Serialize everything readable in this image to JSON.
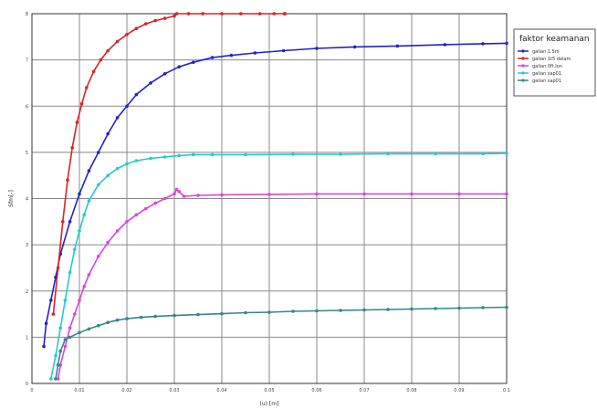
{
  "chart_data": {
    "type": "line",
    "title": "",
    "xlabel": "(u) [m]",
    "ylabel": "Sfm[-]",
    "xlim": [
      0,
      0.1
    ],
    "ylim": [
      0,
      8
    ],
    "grid": true,
    "legend_position": "top-right",
    "legend_title": "faktor keamanan",
    "x_ticks": [
      "0",
      "0.01",
      "0.02",
      "0.03",
      "0.04",
      "0.05",
      "0.06",
      "0.07",
      "0.08",
      "0.09",
      "0.1"
    ],
    "y_ticks": [
      "0",
      "1",
      "2",
      "3",
      "4",
      "5",
      "6",
      "7",
      "8"
    ],
    "series": [
      {
        "name": "galian 1.5m",
        "color": "#2222cc",
        "x": [
          0.0025,
          0.003,
          0.004,
          0.005,
          0.006,
          0.008,
          0.01,
          0.012,
          0.014,
          0.016,
          0.018,
          0.02,
          0.022,
          0.025,
          0.028,
          0.031,
          0.034,
          0.038,
          0.042,
          0.047,
          0.053,
          0.06,
          0.068,
          0.077,
          0.087,
          0.095,
          0.1
        ],
        "y": [
          0.8,
          1.3,
          1.8,
          2.3,
          2.8,
          3.5,
          4.1,
          4.6,
          5.0,
          5.4,
          5.75,
          6.0,
          6.25,
          6.5,
          6.7,
          6.85,
          6.95,
          7.05,
          7.1,
          7.15,
          7.2,
          7.25,
          7.28,
          7.3,
          7.33,
          7.35,
          7.36
        ]
      },
      {
        "name": "galian 1t5 dalam",
        "color": "#dd2222",
        "x": [
          0.0045,
          0.0055,
          0.0065,
          0.0075,
          0.0085,
          0.0095,
          0.0105,
          0.0115,
          0.013,
          0.0145,
          0.016,
          0.018,
          0.02,
          0.022,
          0.024,
          0.026,
          0.028,
          0.03,
          0.0305,
          0.033,
          0.036,
          0.04,
          0.044,
          0.048,
          0.051,
          0.0532,
          0.0533,
          0.0532
        ],
        "y": [
          1.5,
          2.5,
          3.5,
          4.4,
          5.1,
          5.65,
          6.05,
          6.4,
          6.75,
          7.0,
          7.2,
          7.4,
          7.55,
          7.68,
          7.78,
          7.85,
          7.9,
          7.95,
          8.05,
          8.15,
          8.22,
          8.3,
          8.38,
          8.45,
          8.5,
          8.5,
          8.2,
          8.3
        ]
      },
      {
        "name": "galian 0ft.lon",
        "color": "#dd44dd",
        "x": [
          0.0055,
          0.006,
          0.007,
          0.008,
          0.009,
          0.01,
          0.011,
          0.012,
          0.014,
          0.016,
          0.018,
          0.02,
          0.022,
          0.024,
          0.026,
          0.028,
          0.03,
          0.0305,
          0.031,
          0.032,
          0.035,
          0.04,
          0.05,
          0.06,
          0.07,
          0.08,
          0.09,
          0.1
        ],
        "y": [
          0.1,
          0.4,
          0.8,
          1.2,
          1.5,
          1.8,
          2.1,
          2.35,
          2.75,
          3.05,
          3.3,
          3.5,
          3.65,
          3.78,
          3.9,
          4.0,
          4.1,
          4.2,
          4.15,
          4.05,
          4.07,
          4.08,
          4.09,
          4.1,
          4.1,
          4.1,
          4.1,
          4.1
        ]
      },
      {
        "name": "galian sap01",
        "color": "#22cccc",
        "x": [
          0.004,
          0.005,
          0.006,
          0.007,
          0.008,
          0.009,
          0.01,
          0.011,
          0.012,
          0.014,
          0.016,
          0.018,
          0.02,
          0.022,
          0.025,
          0.028,
          0.031,
          0.034,
          0.038,
          0.045,
          0.055,
          0.065,
          0.075,
          0.085,
          0.095,
          0.1
        ],
        "y": [
          0.1,
          0.6,
          1.2,
          1.8,
          2.4,
          2.9,
          3.3,
          3.65,
          3.95,
          4.3,
          4.5,
          4.65,
          4.75,
          4.82,
          4.87,
          4.9,
          4.93,
          4.95,
          4.95,
          4.95,
          4.96,
          4.96,
          4.97,
          4.97,
          4.97,
          4.98
        ]
      },
      {
        "name": "galian sap01",
        "color": "#338888",
        "x": [
          0.005,
          0.0055,
          0.006,
          0.007,
          0.008,
          0.01,
          0.012,
          0.014,
          0.016,
          0.018,
          0.02,
          0.023,
          0.026,
          0.03,
          0.035,
          0.04,
          0.045,
          0.05,
          0.055,
          0.06,
          0.065,
          0.07,
          0.075,
          0.08,
          0.085,
          0.09,
          0.095,
          0.1
        ],
        "y": [
          0.1,
          0.4,
          0.7,
          0.95,
          1.0,
          1.1,
          1.18,
          1.25,
          1.32,
          1.37,
          1.4,
          1.43,
          1.45,
          1.47,
          1.49,
          1.51,
          1.53,
          1.54,
          1.56,
          1.57,
          1.58,
          1.59,
          1.6,
          1.61,
          1.62,
          1.63,
          1.64,
          1.65
        ]
      }
    ]
  }
}
